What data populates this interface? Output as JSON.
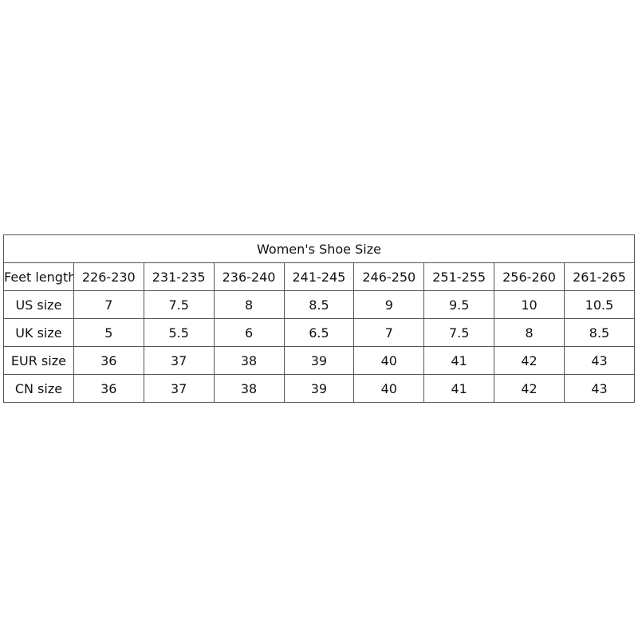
{
  "title": "Women's Shoe Size",
  "header": {
    "label": "Feet length(MM)",
    "cols": [
      "226-230",
      "231-235",
      "236-240",
      "241-245",
      "246-250",
      "251-255",
      "256-260",
      "261-265"
    ]
  },
  "rows": [
    {
      "label": "US size",
      "values": [
        "7",
        "7.5",
        "8",
        "8.5",
        "9",
        "9.5",
        "10",
        "10.5"
      ]
    },
    {
      "label": "UK size",
      "values": [
        "5",
        "5.5",
        "6",
        "6.5",
        "7",
        "7.5",
        "8",
        "8.5"
      ]
    },
    {
      "label": "EUR size",
      "values": [
        "36",
        "37",
        "38",
        "39",
        "40",
        "41",
        "42",
        "43"
      ]
    },
    {
      "label": "CN size",
      "values": [
        "36",
        "37",
        "38",
        "39",
        "40",
        "41",
        "42",
        "43"
      ]
    }
  ]
}
